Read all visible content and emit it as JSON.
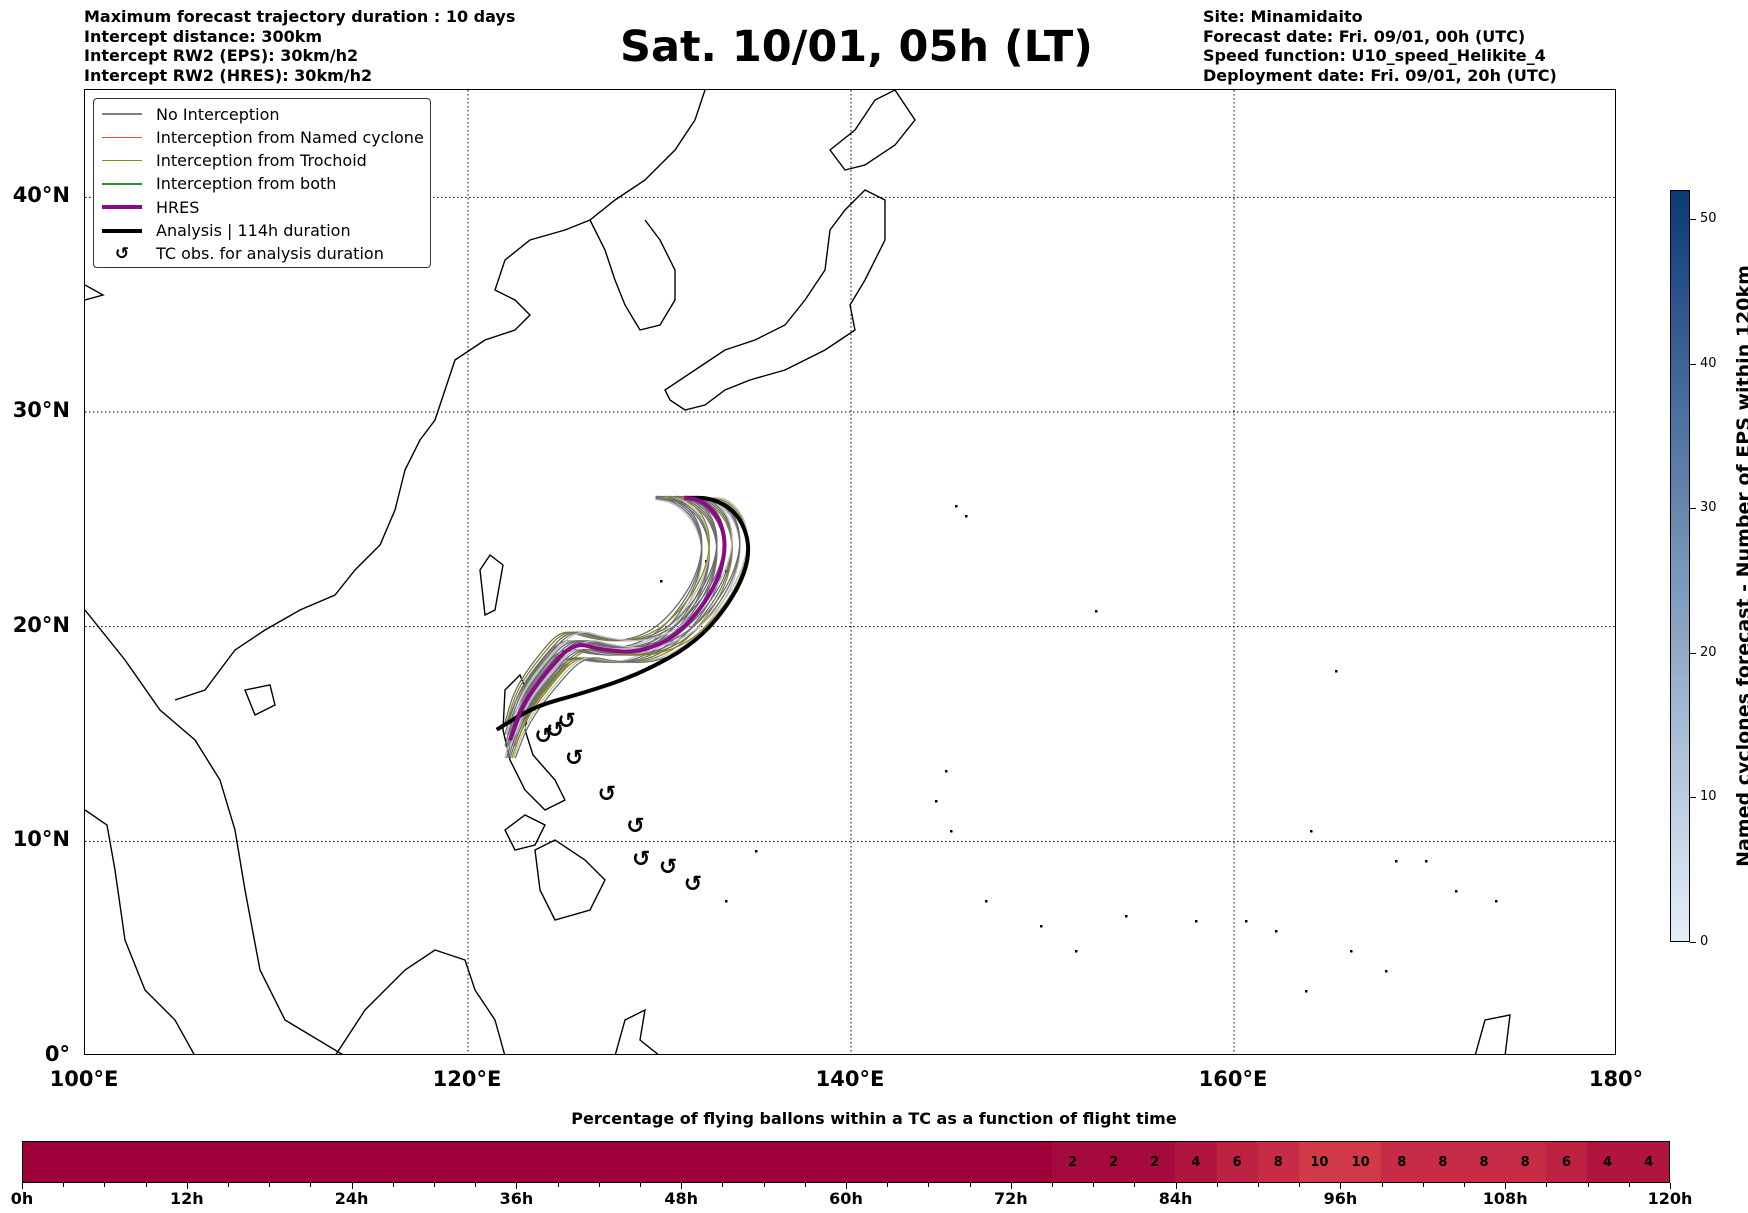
{
  "header_left": [
    "Maximum forecast trajectory duration : 10 days",
    "Intercept distance: 300km",
    "Intercept RW2 (EPS):  30km/h2",
    "Intercept RW2 (HRES): 30km/h2"
  ],
  "title": "Sat. 10/01, 05h (LT)",
  "header_right": [
    "Site: Minamidaito",
    "Forecast date: Fri. 09/01, 00h (UTC)",
    "Speed function: U10_speed_Helikite_4",
    "Deployment date: Fri. 09/01, 20h (UTC)"
  ],
  "legend": [
    {
      "label": "No Interception",
      "color": "#808080",
      "kind": "thin"
    },
    {
      "label": "Interception from Named cyclone",
      "color": "#e8502a",
      "kind": "thin"
    },
    {
      "label": "Interception from Trochoid",
      "color": "#8a8a1a",
      "kind": "thin"
    },
    {
      "label": "Interception from both",
      "color": "#2e8b2e",
      "kind": "thin"
    },
    {
      "label": "HRES",
      "color": "#8b0a8b",
      "kind": "thick"
    },
    {
      "label": "Analysis | 114h duration",
      "color": "#000000",
      "kind": "thick"
    },
    {
      "label": "TC obs. for analysis duration",
      "icon": "cyclone-symbol",
      "glyph": "↺"
    }
  ],
  "map": {
    "lon_range": [
      100,
      180
    ],
    "lat_range": [
      0,
      45
    ],
    "lat_ticks": [
      {
        "v": 0,
        "label": "0°"
      },
      {
        "v": 10,
        "label": "10°N"
      },
      {
        "v": 20,
        "label": "20°N"
      },
      {
        "v": 30,
        "label": "30°N"
      },
      {
        "v": 40,
        "label": "40°N"
      }
    ],
    "lon_ticks": [
      {
        "v": 100,
        "label": "100°E"
      },
      {
        "v": 120,
        "label": "120°E"
      },
      {
        "v": 140,
        "label": "140°E"
      },
      {
        "v": 160,
        "label": "160°E"
      },
      {
        "v": 180,
        "label": "180°"
      }
    ],
    "grid": true,
    "analysis_track": [
      [
        121.5,
        15.2
      ],
      [
        123.5,
        16.3
      ],
      [
        126,
        16.9
      ],
      [
        129,
        17.8
      ],
      [
        132,
        19.3
      ],
      [
        134,
        21.5
      ],
      [
        134.8,
        23.5
      ],
      [
        134.2,
        25.2
      ],
      [
        132.8,
        26.0
      ],
      [
        131.3,
        26.0
      ]
    ],
    "hres_track": [
      [
        122.2,
        14.7
      ],
      [
        122.8,
        16.3
      ],
      [
        124,
        17.8
      ],
      [
        125.5,
        19.3
      ],
      [
        127,
        18.9
      ],
      [
        129,
        18.8
      ],
      [
        131,
        19.6
      ],
      [
        132.8,
        21.6
      ],
      [
        133.5,
        23.5
      ],
      [
        133.2,
        25.0
      ],
      [
        132.2,
        25.9
      ],
      [
        131.3,
        26.0
      ]
    ],
    "tc_observations": [
      [
        124,
        14.8
      ],
      [
        124.6,
        15.1
      ],
      [
        125.2,
        15.5
      ],
      [
        125.6,
        13.8
      ],
      [
        127.3,
        12.1
      ],
      [
        128.8,
        10.6
      ],
      [
        129.1,
        9.1
      ],
      [
        130.5,
        8.7
      ],
      [
        131.8,
        7.9
      ]
    ]
  },
  "colorbar": {
    "label": "Named cyclones forecast - Number of EPS within 120km",
    "min": 0,
    "max": 52,
    "ticks": [
      0,
      10,
      20,
      30,
      40,
      50
    ],
    "color_low": "#e6eff9",
    "color_high": "#0b3a78"
  },
  "percentage_chart": {
    "title": "Percentage of flying ballons within a TC as a function of flight time",
    "hours_max": 120,
    "cell_hours": 3,
    "values": [
      0,
      0,
      0,
      0,
      0,
      0,
      0,
      0,
      0,
      0,
      0,
      0,
      0,
      0,
      0,
      0,
      0,
      0,
      0,
      0,
      0,
      0,
      0,
      0,
      0,
      2,
      2,
      2,
      4,
      6,
      8,
      10,
      10,
      8,
      8,
      8,
      8,
      6,
      4,
      4
    ],
    "tick_labels": [
      {
        "v": 0,
        "label": "0h"
      },
      {
        "v": 12,
        "label": "12h"
      },
      {
        "v": 24,
        "label": "24h"
      },
      {
        "v": 36,
        "label": "36h"
      },
      {
        "v": 48,
        "label": "48h"
      },
      {
        "v": 60,
        "label": "60h"
      },
      {
        "v": 72,
        "label": "72h"
      },
      {
        "v": 84,
        "label": "84h"
      },
      {
        "v": 96,
        "label": "96h"
      },
      {
        "v": 108,
        "label": "108h"
      },
      {
        "v": 120,
        "label": "120h"
      }
    ],
    "base_color": "#9e0039",
    "colors": {
      "2": "#a40a3c",
      "4": "#b0153f",
      "6": "#bd2243",
      "8": "#c72b45",
      "10": "#d03a48"
    }
  },
  "chart_data": {
    "type": "heatmap",
    "title": "Percentage of flying ballons within a TC as a function of flight time",
    "x": [
      0,
      3,
      6,
      9,
      12,
      15,
      18,
      21,
      24,
      27,
      30,
      33,
      36,
      39,
      42,
      45,
      48,
      51,
      54,
      57,
      60,
      63,
      66,
      69,
      72,
      75,
      78,
      81,
      84,
      87,
      90,
      93,
      96,
      99,
      102,
      105,
      108,
      111,
      114,
      117
    ],
    "values": [
      0,
      0,
      0,
      0,
      0,
      0,
      0,
      0,
      0,
      0,
      0,
      0,
      0,
      0,
      0,
      0,
      0,
      0,
      0,
      0,
      0,
      0,
      0,
      0,
      0,
      2,
      2,
      2,
      4,
      6,
      8,
      10,
      10,
      8,
      8,
      8,
      8,
      6,
      4,
      4
    ],
    "xlim": [
      0,
      120
    ]
  }
}
